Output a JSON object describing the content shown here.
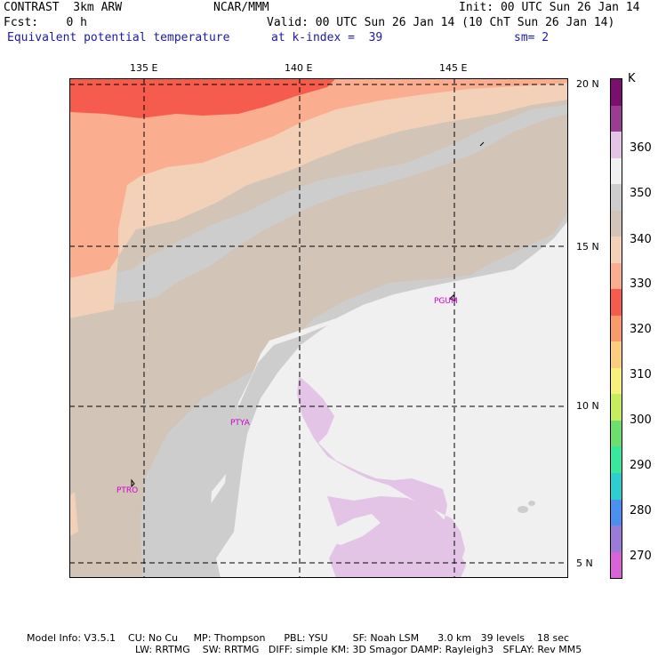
{
  "header": {
    "model": "CONTRAST  3km ARW",
    "forecast": "Fcst:    0 h",
    "center": "NCAR/MMM",
    "init": "Init: 00 UTC Sun 26 Jan 14",
    "valid": "Valid: 00 UTC Sun 26 Jan 14 (10 ChT Sun 26 Jan 14)",
    "field": "Equivalent potential temperature",
    "level": "at k-index =  39",
    "smoothing": "sm= 2"
  },
  "map": {
    "lon_labels": [
      "135 E",
      "140 E",
      "145 E"
    ],
    "lat_labels": [
      "20 N",
      "15 N",
      "10 N",
      "5 N"
    ],
    "stations": [
      "PGUM",
      "PTYA",
      "PTRO"
    ]
  },
  "colorbar": {
    "unit": "K",
    "labels": [
      "360",
      "350",
      "340",
      "330",
      "320",
      "310",
      "300",
      "290",
      "280",
      "270"
    ],
    "colors": [
      "#7a0f6e",
      "#9a3c92",
      "#e3c3e6",
      "#f0f0f0",
      "#cdcdcd",
      "#d3c4b8",
      "#f2d1b8",
      "#fbae8f",
      "#f55c4e",
      "#f99a6a",
      "#fbcd7e",
      "#f7f07a",
      "#c6ee5c",
      "#6ce06c",
      "#38e89c",
      "#2ccfcf",
      "#4b8ff0",
      "#9a7cd8",
      "#d864d8"
    ]
  },
  "footer": {
    "line1": "Model Info: V3.5.1    CU: No Cu     MP: Thompson      PBL: YSU        SF: Noah LSM      3.0 km   39 levels    18 sec",
    "line2": "LW: RRTMG    SW: RRTMG   DIFF: simple KM: 3D Smagor DAMP: Rayleigh3   SFLAY: Rev MM5"
  }
}
